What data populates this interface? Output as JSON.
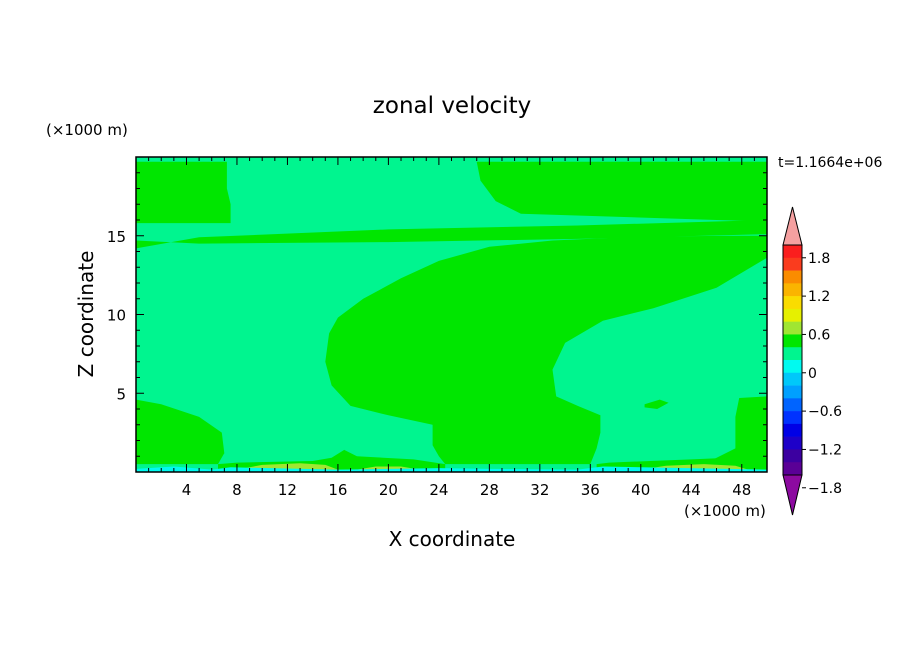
{
  "chart_data": {
    "type": "heatmap",
    "title": "zonal velocity",
    "xlabel": "X coordinate",
    "ylabel": "Z coordinate",
    "x_unit_label": "(×1000 m)",
    "y_unit_label": "(×1000 m)",
    "time_label": "t=1.1664e+06",
    "xlim": [
      0,
      50
    ],
    "ylim": [
      0,
      20
    ],
    "x_ticks": [
      4,
      8,
      12,
      16,
      20,
      24,
      28,
      32,
      36,
      40,
      44,
      48
    ],
    "y_ticks": [
      5,
      10,
      15
    ],
    "background_level_color": "#00f58f",
    "regions": [
      {
        "level": "0 to 0.3",
        "color": "#00e600",
        "points": [
          [
            0,
            15.8
          ],
          [
            7.5,
            15.8
          ],
          [
            7.5,
            17
          ],
          [
            7.2,
            18
          ],
          [
            7.2,
            19.7
          ],
          [
            0,
            19.7
          ]
        ]
      },
      {
        "level": "0 to 0.3",
        "color": "#00e600",
        "points": [
          [
            27,
            19.7
          ],
          [
            27.3,
            18.5
          ],
          [
            28.5,
            17.2
          ],
          [
            30.5,
            16.4
          ],
          [
            50,
            15.9
          ],
          [
            50,
            19.7
          ]
        ]
      },
      {
        "level": "0 to 0.3",
        "color": "#00e600",
        "points": [
          [
            0,
            14.2
          ],
          [
            5,
            14.9
          ],
          [
            20,
            15.4
          ],
          [
            35,
            15.65
          ],
          [
            50,
            16
          ],
          [
            50,
            15.1
          ],
          [
            35,
            14.8
          ],
          [
            20,
            14.6
          ],
          [
            5,
            14.5
          ],
          [
            0,
            14.7
          ]
        ]
      },
      {
        "level": "0 to 0.3",
        "color": "#00e600",
        "points": [
          [
            24,
            13.4
          ],
          [
            28,
            14.3
          ],
          [
            33,
            14.7
          ],
          [
            40,
            14.95
          ],
          [
            48,
            15
          ],
          [
            50,
            15
          ],
          [
            50,
            13.6
          ],
          [
            46,
            11.7
          ],
          [
            41,
            10.4
          ],
          [
            37,
            9.6
          ],
          [
            34,
            8.2
          ],
          [
            33,
            6.5
          ],
          [
            33.3,
            4.8
          ],
          [
            35,
            4.2
          ],
          [
            36.8,
            3.6
          ],
          [
            36.8,
            2.5
          ],
          [
            36.5,
            1.5
          ],
          [
            36,
            0.5
          ],
          [
            24.5,
            0.5
          ],
          [
            24,
            1
          ],
          [
            23.5,
            1.7
          ],
          [
            23.5,
            3
          ],
          [
            20,
            3.6
          ],
          [
            17,
            4.2
          ],
          [
            15.5,
            5.5
          ],
          [
            15,
            7
          ],
          [
            15.3,
            8.8
          ],
          [
            16,
            9.8
          ],
          [
            18,
            11
          ],
          [
            21,
            12.3
          ]
        ]
      },
      {
        "level": "0 to 0.3",
        "color": "#00e600",
        "points": [
          [
            0,
            4.6
          ],
          [
            2,
            4.3
          ],
          [
            5,
            3.5
          ],
          [
            6.8,
            2.5
          ],
          [
            7,
            1.2
          ],
          [
            6.5,
            0.5
          ],
          [
            0,
            0.5
          ]
        ]
      },
      {
        "level": "0 to 0.3",
        "color": "#00e600",
        "points": [
          [
            47.8,
            4.7
          ],
          [
            50,
            4.8
          ],
          [
            50,
            0.5
          ],
          [
            45,
            0.5
          ],
          [
            47.5,
            1.5
          ],
          [
            47.5,
            3.5
          ]
        ]
      },
      {
        "level": "0 to 0.3",
        "color": "#00e600",
        "points": [
          [
            40.3,
            4.3
          ],
          [
            41.5,
            4.6
          ],
          [
            42.2,
            4.4
          ],
          [
            41.3,
            4.0
          ],
          [
            40.3,
            4.1
          ]
        ]
      },
      {
        "level": "0 to 0.3",
        "color": "#00e600",
        "points": [
          [
            6.5,
            0.5
          ],
          [
            8,
            0.6
          ],
          [
            14,
            0.7
          ],
          [
            15.5,
            0.9
          ],
          [
            16.5,
            1.4
          ],
          [
            17.5,
            1
          ],
          [
            22,
            0.8
          ],
          [
            24.5,
            0.5
          ],
          [
            24.5,
            0
          ],
          [
            6.5,
            0
          ]
        ]
      },
      {
        "level": "0 to 0.3",
        "color": "#00e600",
        "points": [
          [
            36.5,
            0.5
          ],
          [
            37.5,
            0.6
          ],
          [
            44,
            0.8
          ],
          [
            47,
            0.9
          ],
          [
            50,
            0.7
          ],
          [
            50,
            0
          ],
          [
            36.5,
            0
          ]
        ]
      },
      {
        "level": "0.3 to 0.6",
        "color": "#a0e632",
        "points": [
          [
            8,
            0.15
          ],
          [
            10,
            0.45
          ],
          [
            13,
            0.55
          ],
          [
            15,
            0.45
          ],
          [
            16,
            0.15
          ]
        ]
      },
      {
        "level": "0.3 to 0.6",
        "color": "#a0e632",
        "points": [
          [
            40,
            0.15
          ],
          [
            42,
            0.4
          ],
          [
            45,
            0.5
          ],
          [
            47.5,
            0.4
          ],
          [
            48.5,
            0.15
          ]
        ]
      },
      {
        "level": "0.3 to 0.6",
        "color": "#a0e632",
        "points": [
          [
            17.5,
            0.15
          ],
          [
            19,
            0.35
          ],
          [
            21,
            0.35
          ],
          [
            22.5,
            0.15
          ]
        ]
      },
      {
        "level": "-0.3 to 0",
        "color": "#00faf0",
        "points": [
          [
            0,
            0
          ],
          [
            50,
            0
          ],
          [
            50,
            0.15
          ],
          [
            37,
            0.35
          ],
          [
            35,
            0.15
          ],
          [
            28,
            0.2
          ],
          [
            24,
            0.25
          ],
          [
            16,
            0.15
          ],
          [
            7.5,
            0.3
          ],
          [
            6,
            0.15
          ],
          [
            3,
            0.35
          ],
          [
            0,
            0.2
          ]
        ]
      }
    ],
    "colorbar": {
      "labels": [
        "1.8",
        "1.2",
        "0.6",
        "0",
        "−0.6",
        "−1.2",
        "−1.8"
      ],
      "colors_top_to_bottom": [
        "#fa1e1e",
        "#fa3c1e",
        "#fa8c00",
        "#fab400",
        "#fadc00",
        "#e6f000",
        "#a0e632",
        "#00e600",
        "#00f58f",
        "#00faf0",
        "#00c8fa",
        "#00a0ff",
        "#0064ff",
        "#0032ff",
        "#0000e6",
        "#1e00c8",
        "#3c00a0",
        "#5a0096"
      ],
      "overflow_top_color": "#f5a0a0",
      "underflow_bottom_color": "#8c0aa0"
    }
  }
}
